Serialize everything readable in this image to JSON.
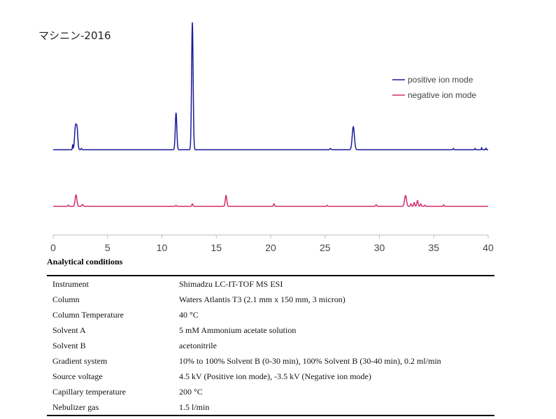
{
  "chart_data": {
    "type": "line",
    "title": "マシニン-2016",
    "xlabel": "",
    "ylabel": "",
    "xlim": [
      0,
      40
    ],
    "xticks": [
      0,
      5,
      10,
      15,
      20,
      25,
      30,
      35,
      40
    ],
    "legend_position": "top-right",
    "series": [
      {
        "name": "positive ion mode",
        "color": "#1a1a9c",
        "baseline": 0,
        "peaks": [
          {
            "x": 1.8,
            "y": 0.04,
            "w": 0.03
          },
          {
            "x": 2.05,
            "y": 0.18,
            "w": 0.08
          },
          {
            "x": 2.2,
            "y": 0.15,
            "w": 0.07
          },
          {
            "x": 2.6,
            "y": 0.01,
            "w": 0.04
          },
          {
            "x": 11.3,
            "y": 0.29,
            "w": 0.07
          },
          {
            "x": 12.8,
            "y": 1.0,
            "w": 0.07
          },
          {
            "x": 25.5,
            "y": 0.01,
            "w": 0.05
          },
          {
            "x": 27.6,
            "y": 0.18,
            "w": 0.1
          },
          {
            "x": 36.8,
            "y": 0.01,
            "w": 0.04
          },
          {
            "x": 38.8,
            "y": 0.01,
            "w": 0.03
          },
          {
            "x": 39.4,
            "y": 0.015,
            "w": 0.03
          },
          {
            "x": 39.8,
            "y": 0.012,
            "w": 0.03
          }
        ]
      },
      {
        "name": "negative ion mode",
        "color": "#d12f6e",
        "baseline": 0,
        "peaks": [
          {
            "x": 1.4,
            "y": 0.01,
            "w": 0.04
          },
          {
            "x": 2.1,
            "y": 0.09,
            "w": 0.08
          },
          {
            "x": 2.7,
            "y": 0.015,
            "w": 0.06
          },
          {
            "x": 11.3,
            "y": 0.008,
            "w": 0.04
          },
          {
            "x": 12.8,
            "y": 0.02,
            "w": 0.05
          },
          {
            "x": 15.9,
            "y": 0.085,
            "w": 0.07
          },
          {
            "x": 20.3,
            "y": 0.02,
            "w": 0.05
          },
          {
            "x": 25.2,
            "y": 0.008,
            "w": 0.04
          },
          {
            "x": 29.7,
            "y": 0.012,
            "w": 0.05
          },
          {
            "x": 32.4,
            "y": 0.085,
            "w": 0.09
          },
          {
            "x": 32.9,
            "y": 0.02,
            "w": 0.05
          },
          {
            "x": 33.2,
            "y": 0.03,
            "w": 0.05
          },
          {
            "x": 33.5,
            "y": 0.045,
            "w": 0.06
          },
          {
            "x": 33.8,
            "y": 0.02,
            "w": 0.05
          },
          {
            "x": 34.2,
            "y": 0.01,
            "w": 0.04
          },
          {
            "x": 35.9,
            "y": 0.012,
            "w": 0.04
          }
        ]
      }
    ]
  },
  "conditions": {
    "heading": "Analytical conditions",
    "rows": [
      {
        "param": "Instrument",
        "value": "Shimadzu LC-IT-TOF MS ESI"
      },
      {
        "param": "Column",
        "value": "Waters Atlantis T3 (2.1 mm x 150 mm, 3 micron)"
      },
      {
        "param": "Column Temperature",
        "value": "40 °C"
      },
      {
        "param": "Solvent A",
        "value": "5 mM Ammonium acetate solution"
      },
      {
        "param": "Solvent B",
        "value": "acetonitrile"
      },
      {
        "param": "Gradient system",
        "value": "10% to 100% Solvent B (0-30 min), 100% Solvent B (30-40 min), 0.2 ml/min"
      },
      {
        "param": "Source voltage",
        "value": "4.5 kV (Positive ion mode), -3.5 kV (Negative ion mode)"
      },
      {
        "param": "Capillary temperature",
        "value": "200 °C"
      },
      {
        "param": "Nebulizer gas",
        "value": "1.5 l/min"
      }
    ]
  }
}
